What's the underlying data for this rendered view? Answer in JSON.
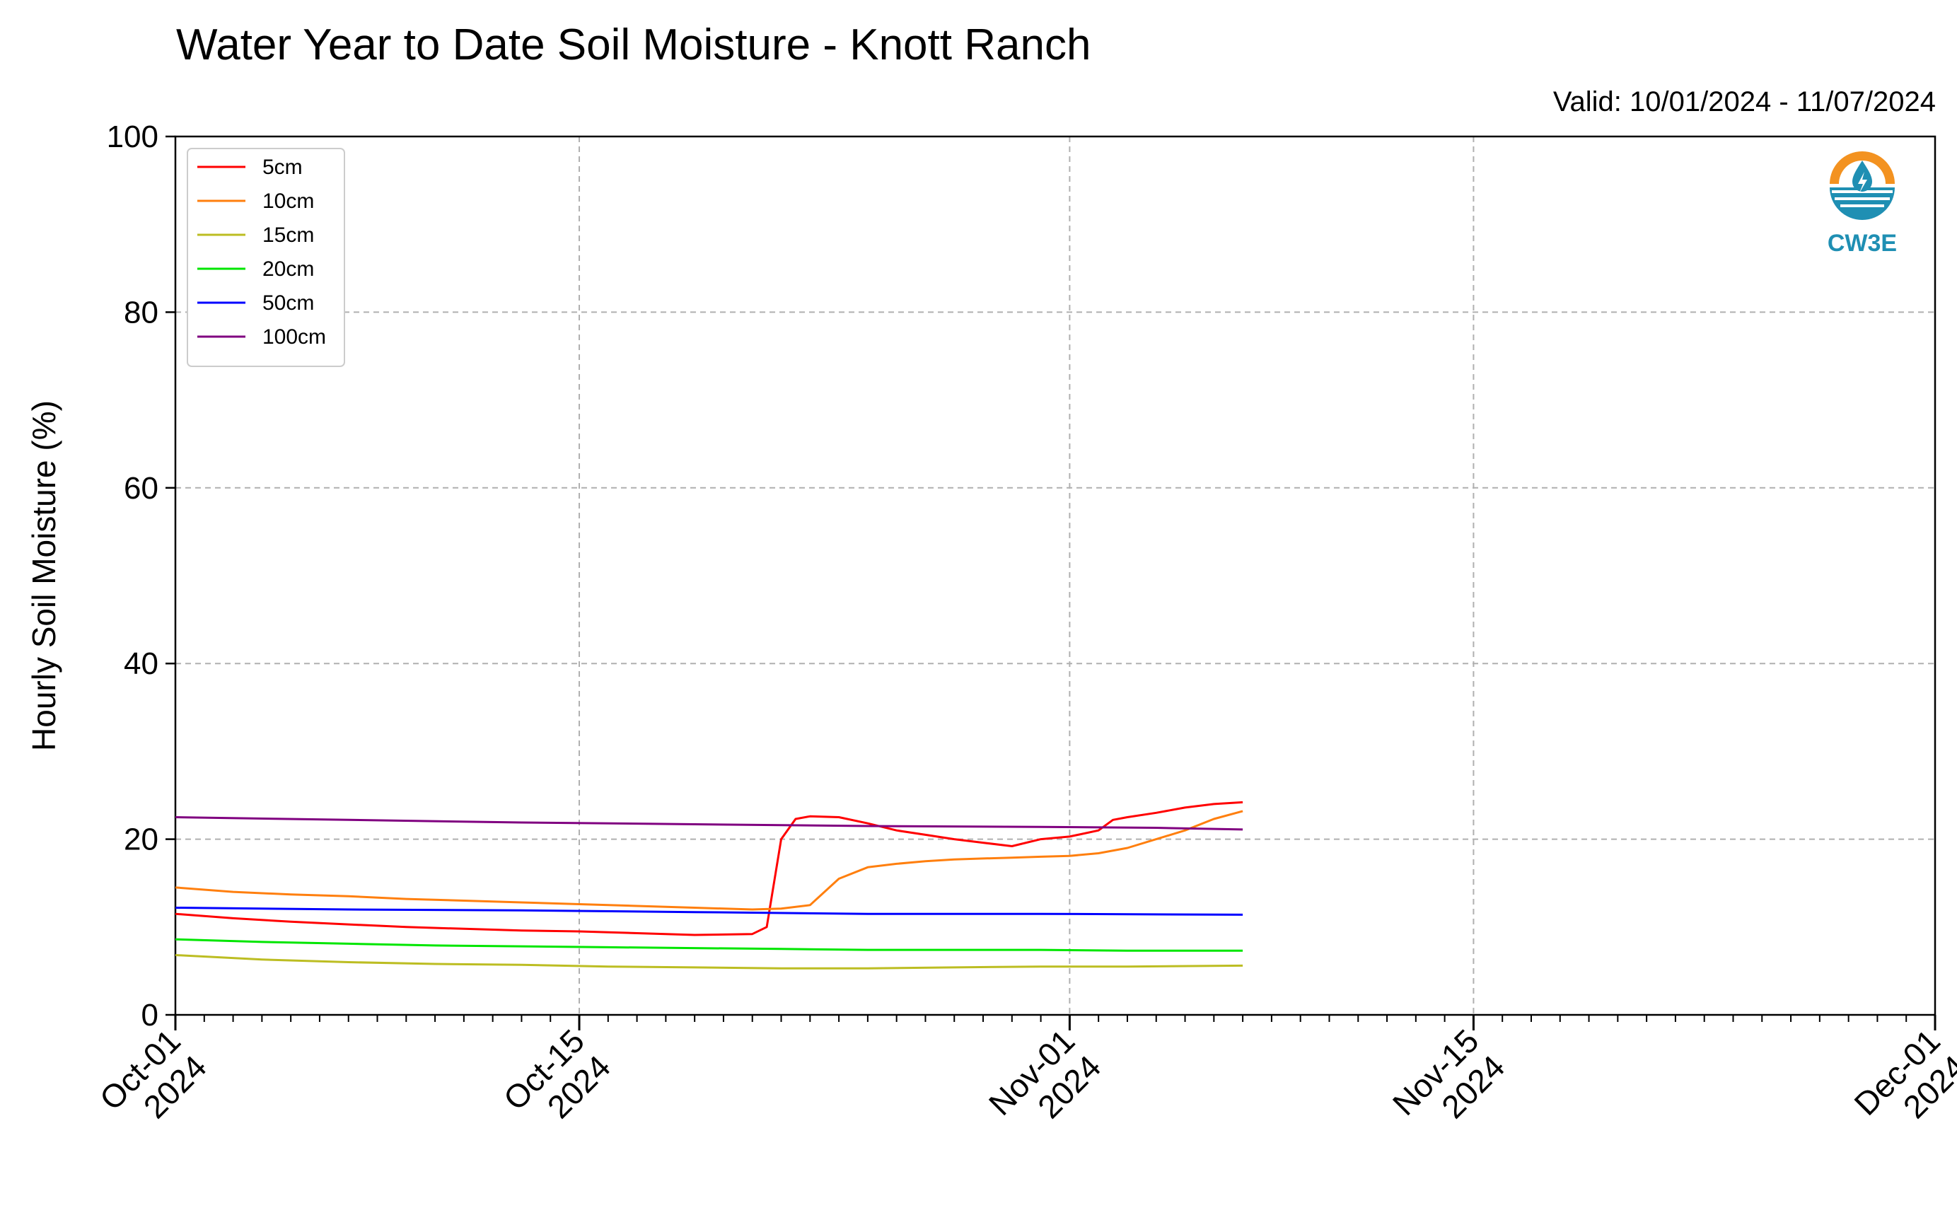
{
  "title": "Water Year to Date Soil Moisture - Knott Ranch",
  "valid_text": "Valid: 10/01/2024 - 11/07/2024",
  "logo_text": "CW3E",
  "colors": {
    "5cm": "#ff0000",
    "10cm": "#ff7f0e",
    "15cm": "#bcbd22",
    "20cm": "#00e600",
    "50cm": "#0000ff",
    "100cm": "#800080",
    "logo_orange": "#f39220",
    "logo_blue": "#1f8fb3",
    "grid": "#b0b0b0"
  },
  "chart_data": {
    "type": "line",
    "title": "Water Year to Date Soil Moisture - Knott Ranch",
    "xlabel": "",
    "ylabel": "Hourly Soil Moisture (%)",
    "ylim": [
      0,
      100
    ],
    "xlim": [
      "2024-10-01",
      "2024-12-01"
    ],
    "x_ticks": [
      {
        "date": "2024-10-01",
        "line1": "Oct-01",
        "line2": "2024"
      },
      {
        "date": "2024-10-15",
        "line1": "Oct-15",
        "line2": "2024"
      },
      {
        "date": "2024-11-01",
        "line1": "Nov-01",
        "line2": "2024"
      },
      {
        "date": "2024-11-15",
        "line1": "Nov-15",
        "line2": "2024"
      },
      {
        "date": "2024-12-01",
        "line1": "Dec-01",
        "line2": "2024"
      }
    ],
    "y_ticks": [
      0,
      20,
      40,
      60,
      80,
      100
    ],
    "grid": true,
    "legend_position": "top-left",
    "series": [
      {
        "name": "5cm",
        "x": [
          "2024-10-01",
          "2024-10-03",
          "2024-10-05",
          "2024-10-07",
          "2024-10-09",
          "2024-10-11",
          "2024-10-13",
          "2024-10-15",
          "2024-10-17",
          "2024-10-19",
          "2024-10-21",
          "2024-10-21T12",
          "2024-10-22",
          "2024-10-22T12",
          "2024-10-23",
          "2024-10-24",
          "2024-10-25",
          "2024-10-26",
          "2024-10-27",
          "2024-10-28",
          "2024-10-29",
          "2024-10-30",
          "2024-10-31",
          "2024-11-01",
          "2024-11-02",
          "2024-11-02T12",
          "2024-11-03",
          "2024-11-04",
          "2024-11-05",
          "2024-11-06",
          "2024-11-07"
        ],
        "y": [
          11.5,
          11,
          10.6,
          10.3,
          10,
          9.8,
          9.6,
          9.5,
          9.3,
          9.1,
          9.2,
          10,
          20,
          22.3,
          22.6,
          22.5,
          21.8,
          21,
          20.5,
          20,
          19.6,
          19.2,
          20,
          20.3,
          21,
          22.2,
          22.5,
          23,
          23.6,
          24,
          24.2
        ]
      },
      {
        "name": "10cm",
        "x": [
          "2024-10-01",
          "2024-10-03",
          "2024-10-05",
          "2024-10-07",
          "2024-10-09",
          "2024-10-11",
          "2024-10-13",
          "2024-10-15",
          "2024-10-17",
          "2024-10-19",
          "2024-10-21",
          "2024-10-22",
          "2024-10-23",
          "2024-10-24",
          "2024-10-25",
          "2024-10-26",
          "2024-10-27",
          "2024-10-28",
          "2024-10-29",
          "2024-10-30",
          "2024-10-31",
          "2024-11-01",
          "2024-11-02",
          "2024-11-03",
          "2024-11-04",
          "2024-11-05",
          "2024-11-06",
          "2024-11-07"
        ],
        "y": [
          14.5,
          14,
          13.7,
          13.5,
          13.2,
          13,
          12.8,
          12.6,
          12.4,
          12.2,
          12,
          12.1,
          12.5,
          15.5,
          16.8,
          17.2,
          17.5,
          17.7,
          17.8,
          17.9,
          18,
          18.1,
          18.4,
          19,
          20,
          21,
          22.3,
          23.2
        ]
      },
      {
        "name": "15cm",
        "x": [
          "2024-10-01",
          "2024-10-04",
          "2024-10-07",
          "2024-10-10",
          "2024-10-13",
          "2024-10-16",
          "2024-10-19",
          "2024-10-22",
          "2024-10-25",
          "2024-10-28",
          "2024-10-31",
          "2024-11-03",
          "2024-11-07"
        ],
        "y": [
          6.8,
          6.3,
          6,
          5.8,
          5.7,
          5.5,
          5.4,
          5.3,
          5.3,
          5.4,
          5.5,
          5.5,
          5.6
        ]
      },
      {
        "name": "20cm",
        "x": [
          "2024-10-01",
          "2024-10-04",
          "2024-10-07",
          "2024-10-10",
          "2024-10-13",
          "2024-10-16",
          "2024-10-19",
          "2024-10-22",
          "2024-10-25",
          "2024-10-28",
          "2024-10-31",
          "2024-11-03",
          "2024-11-07"
        ],
        "y": [
          8.6,
          8.3,
          8.1,
          7.9,
          7.8,
          7.7,
          7.6,
          7.5,
          7.4,
          7.4,
          7.4,
          7.3,
          7.3
        ]
      },
      {
        "name": "50cm",
        "x": [
          "2024-10-01",
          "2024-10-07",
          "2024-10-13",
          "2024-10-19",
          "2024-10-25",
          "2024-10-31",
          "2024-11-07"
        ],
        "y": [
          12.2,
          12,
          11.9,
          11.7,
          11.5,
          11.5,
          11.4
        ]
      },
      {
        "name": "100cm",
        "x": [
          "2024-10-01",
          "2024-10-07",
          "2024-10-13",
          "2024-10-19",
          "2024-10-25",
          "2024-10-31",
          "2024-11-04",
          "2024-11-07"
        ],
        "y": [
          22.5,
          22.2,
          21.9,
          21.7,
          21.5,
          21.4,
          21.3,
          21.1
        ]
      }
    ]
  }
}
